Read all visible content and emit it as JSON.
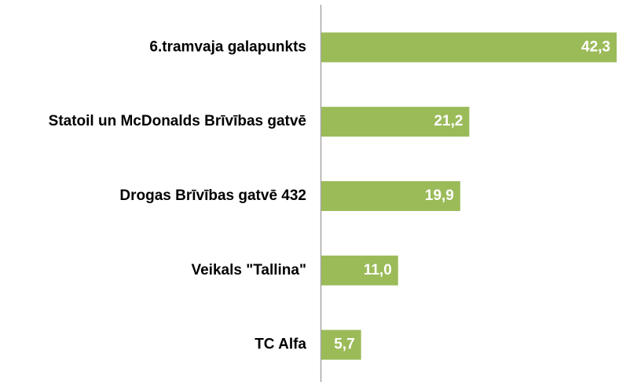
{
  "chart_data": {
    "type": "barh",
    "categories": [
      "6.tramvaja galapunkts",
      "Statoil un McDonalds Brīvības gatvē",
      "Drogas Brīvības gatvē 432",
      "Veikals \"Tallina\"",
      "TC Alfa"
    ],
    "values": [
      42.3,
      21.2,
      19.9,
      11.0,
      5.7
    ],
    "value_labels": [
      "42,3",
      "21,2",
      "19,9",
      "11,0",
      "5,7"
    ],
    "color": "#9bbb59"
  }
}
